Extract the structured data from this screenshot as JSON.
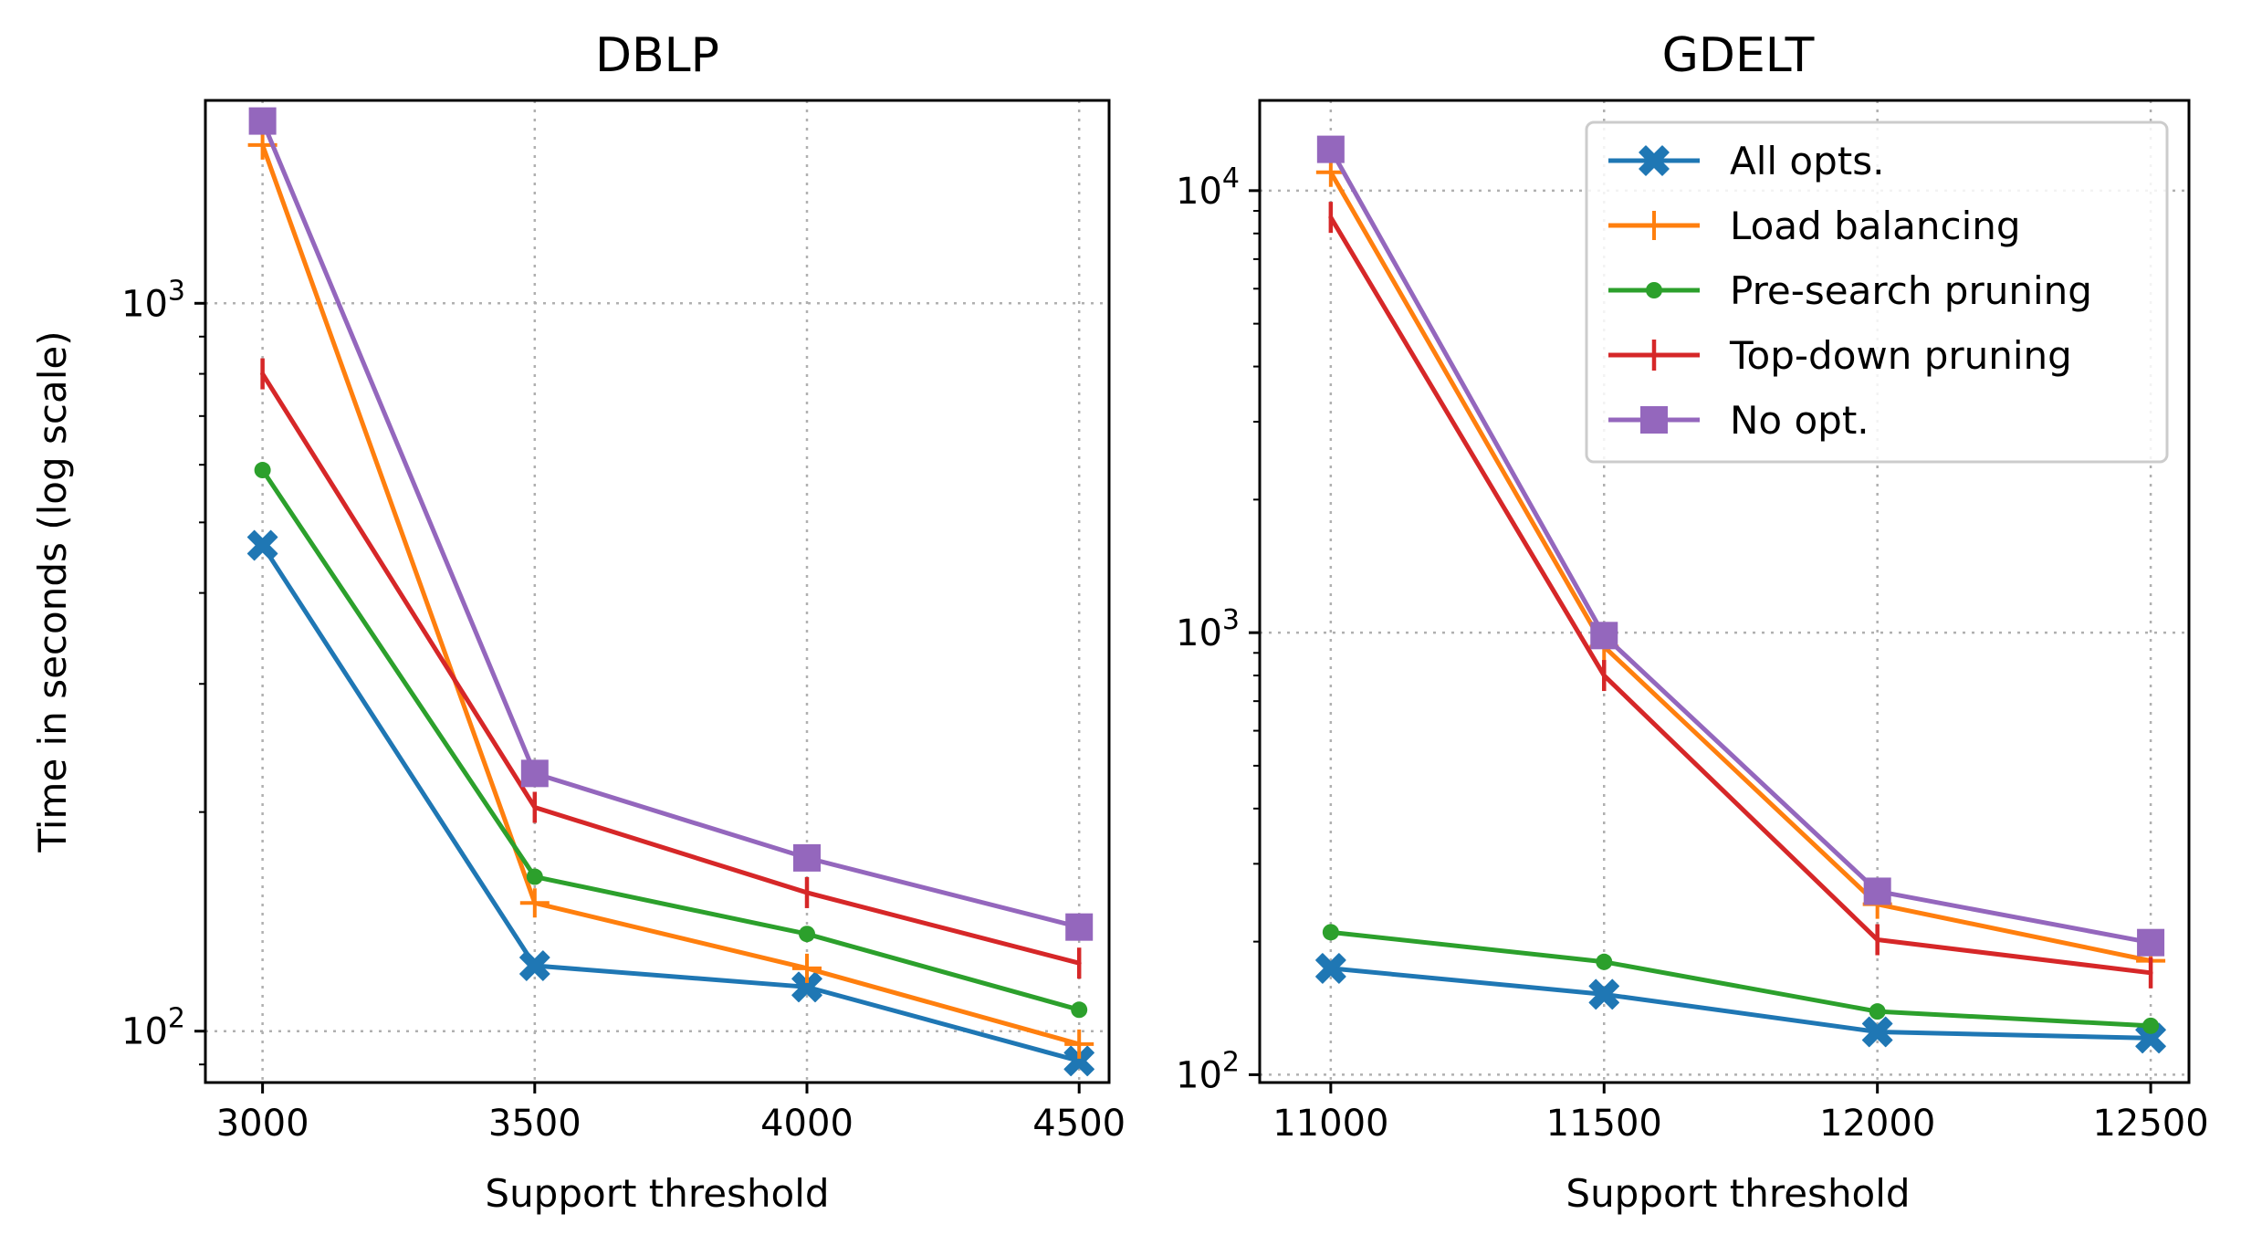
{
  "chart_data": [
    {
      "type": "line",
      "title": "DBLP",
      "xlabel": "Support threshold",
      "ylabel": "Time in seconds (log scale)",
      "yscale": "log",
      "ylim": [
        85,
        1900
      ],
      "xlim": [
        2895,
        4555
      ],
      "x": [
        3000,
        3500,
        4000,
        4500
      ],
      "xticks": [
        3000,
        3500,
        4000,
        4500
      ],
      "xtick_labels": [
        "3000",
        "3500",
        "4000",
        "4500"
      ],
      "yticks_major": [
        100,
        1000
      ],
      "ytick_labels": [
        {
          "base": "10",
          "exp": "2"
        },
        {
          "base": "10",
          "exp": "3"
        }
      ],
      "grid": true,
      "series": [
        {
          "name": "All opts.",
          "values": [
            465,
            123,
            115,
            91
          ]
        },
        {
          "name": "Load balancing",
          "values": [
            1650,
            150,
            122,
            96
          ]
        },
        {
          "name": "Pre-search pruning",
          "values": [
            590,
            163,
            136,
            107
          ]
        },
        {
          "name": "Top-down pruning",
          "values": [
            800,
            203,
            155,
            124
          ]
        },
        {
          "name": "No opt.",
          "values": [
            1780,
            226,
            173,
            139
          ]
        }
      ]
    },
    {
      "type": "line",
      "title": "GDELT",
      "xlabel": "Support threshold",
      "ylabel": "",
      "yscale": "log",
      "ylim": [
        96,
        16000
      ],
      "xlim": [
        10870,
        12570
      ],
      "x": [
        11000,
        11500,
        12000,
        12500
      ],
      "xticks": [
        11000,
        11500,
        12000,
        12500
      ],
      "xtick_labels": [
        "11000",
        "11500",
        "12000",
        "12500"
      ],
      "yticks_major": [
        100,
        1000,
        10000
      ],
      "ytick_labels": [
        {
          "base": "10",
          "exp": "2"
        },
        {
          "base": "10",
          "exp": "3"
        },
        {
          "base": "10",
          "exp": "4"
        }
      ],
      "grid": true,
      "legend": "top-right",
      "series": [
        {
          "name": "All opts.",
          "values": [
            174,
            152,
            125,
            121
          ]
        },
        {
          "name": "Load balancing",
          "values": [
            11000,
            930,
            243,
            181
          ]
        },
        {
          "name": "Pre-search pruning",
          "values": [
            210,
            180,
            139,
            129
          ]
        },
        {
          "name": "Top-down pruning",
          "values": [
            8700,
            800,
            202,
            170
          ]
        },
        {
          "name": "No opt.",
          "values": [
            12400,
            985,
            260,
            199
          ]
        }
      ]
    }
  ],
  "series_styles": [
    {
      "name": "All opts.",
      "color": "#1f77b4",
      "marker": "x-filled"
    },
    {
      "name": "Load balancing",
      "color": "#ff7f0e",
      "marker": "plus"
    },
    {
      "name": "Pre-search pruning",
      "color": "#2ca02c",
      "marker": "dot"
    },
    {
      "name": "Top-down pruning",
      "color": "#d62728",
      "marker": "vline"
    },
    {
      "name": "No opt.",
      "color": "#9467bd",
      "marker": "square"
    }
  ]
}
